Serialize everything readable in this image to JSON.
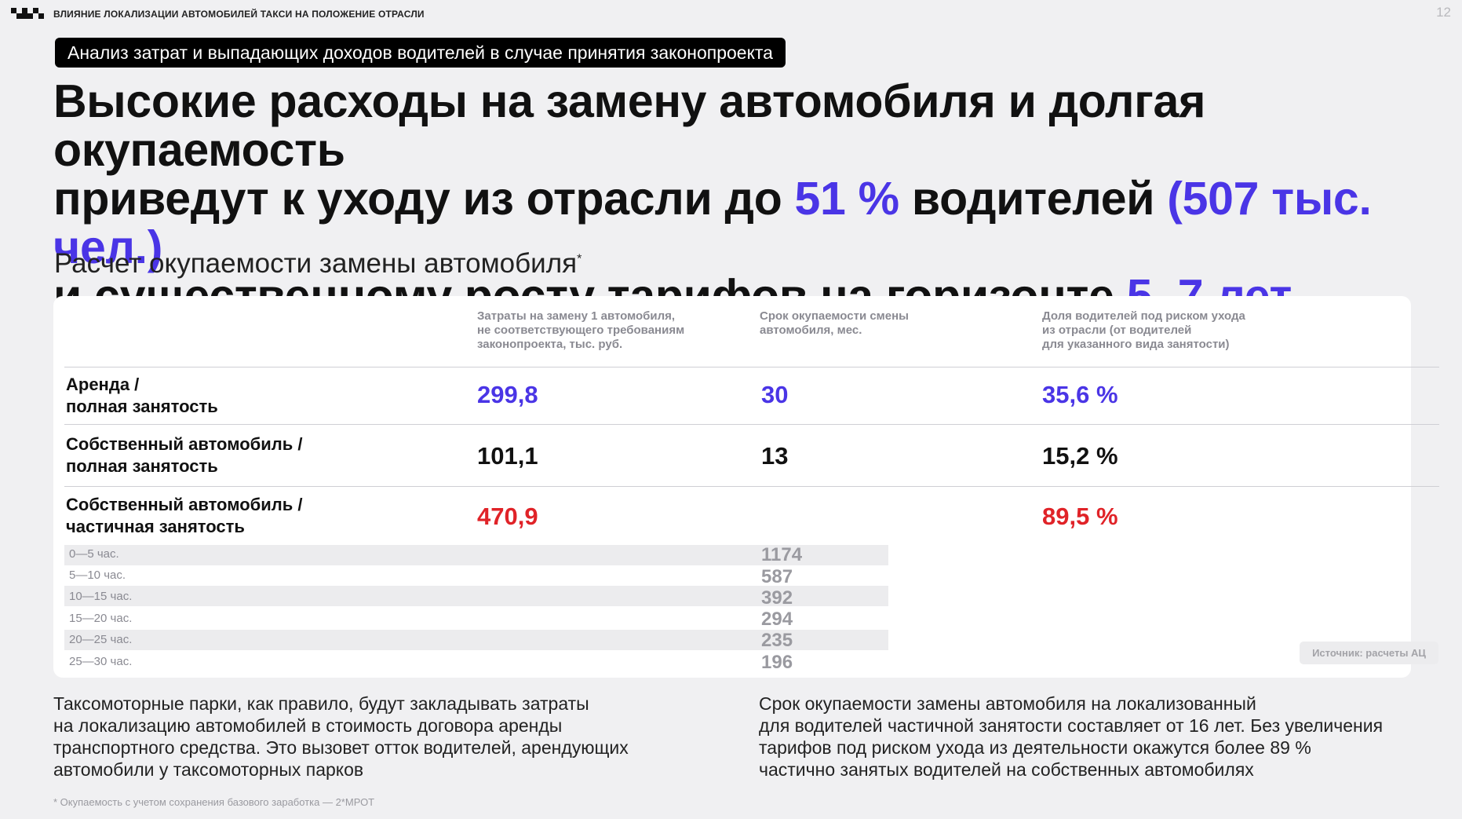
{
  "header": {
    "title": "ВЛИЯНИЕ ЛОКАЛИЗАЦИИ АВТОМОБИЛЕЙ ТАКСИ НА ПОЛОЖЕНИЕ ОТРАСЛИ",
    "page_number": "12"
  },
  "section_badge": "Анализ затрат и выпадающих доходов водителей в случае принятия законопроекта",
  "headline": {
    "line1": "Высокие расходы на замену автомобиля и долгая окупаемость",
    "line2_a": "приведут к уходу из отрасли до ",
    "line2_b": "51 %",
    "line2_c": " водителей ",
    "line2_d": "(507 тыс. чел.)",
    "line3_a": "и существенному росту тарифов на горизонте ",
    "line3_b": "5–7 лет"
  },
  "subtitle": {
    "text": "Расчет окупаемости замены автомобиля",
    "mark": "*"
  },
  "table": {
    "headers": {
      "cost": [
        "Затраты на замену 1 автомобиля,",
        "не соответствующего требованиям",
        "законопроекта, тыс. руб."
      ],
      "payback": [
        "Срок окупаемости смены",
        "автомобиля, мес."
      ],
      "share": [
        "Доля водителей под риском ухода",
        "из отрасли (от водителей",
        "для указанного вида занятости)"
      ]
    },
    "rows": [
      {
        "label": [
          "Аренда /",
          "полная занятость"
        ],
        "cost": "299,8",
        "payback": "30",
        "share": "35,6 %"
      },
      {
        "label": [
          "Собственный автомобиль /",
          "полная занятость"
        ],
        "cost": "101,1",
        "payback": "13",
        "share": "15,2 %"
      },
      {
        "label": [
          "Собственный автомобиль /",
          "частичная занятость"
        ],
        "cost": "470,9",
        "payback": "",
        "share": "89,5 %"
      }
    ],
    "sub_rows": [
      {
        "label": "0—5 час.",
        "payback": "1174"
      },
      {
        "label": "5—10 час.",
        "payback": "587"
      },
      {
        "label": "10—15 час.",
        "payback": "392"
      },
      {
        "label": "15—20 час.",
        "payback": "294"
      },
      {
        "label": "20—25 час.",
        "payback": "235"
      },
      {
        "label": "25—30 час.",
        "payback": "196"
      }
    ],
    "source": "Источник: расчеты АЦ"
  },
  "notes": {
    "left": [
      "Таксомоторные парки, как правило, будут закладывать затраты",
      "на локализацию автомобилей в стоимость договора аренды",
      "транспортного средства. Это вызовет отток водителей, арендующих",
      "автомобили у таксомоторных парков"
    ],
    "right": [
      "Срок окупаемости замены автомобиля на локализованный",
      "для водителей частичной занятости составляет от 16 лет. Без увеличения",
      "тарифов под риском ухода из деятельности окажутся более 89 %",
      "частично занятых водителей на собственных автомобилях"
    ]
  },
  "footnote": "* Окупаемость с учетом сохранения базового заработка — 2*МРОТ",
  "colors": {
    "accent": "#4a35e6",
    "red": "#e02328"
  }
}
